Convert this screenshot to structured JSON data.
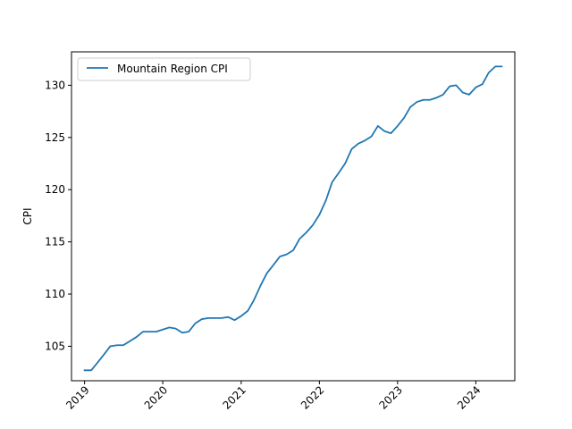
{
  "chart_data": {
    "type": "line",
    "title": "",
    "xlabel": "",
    "ylabel": "CPI",
    "xlim": [
      "2018-11-01",
      "2024-07-01"
    ],
    "ylim": [
      101.7,
      133.2
    ],
    "x_ticks": [
      "2019",
      "2020",
      "2021",
      "2022",
      "2023",
      "2024"
    ],
    "y_ticks": [
      105,
      110,
      115,
      120,
      125,
      130
    ],
    "grid": false,
    "legend": "top-left",
    "series": [
      {
        "name": "Mountain Region CPI",
        "color": "#1f77b4",
        "x": [
          "2019-01",
          "2019-02",
          "2019-03",
          "2019-04",
          "2019-05",
          "2019-06",
          "2019-07",
          "2019-08",
          "2019-09",
          "2019-10",
          "2019-11",
          "2019-12",
          "2020-01",
          "2020-02",
          "2020-03",
          "2020-04",
          "2020-05",
          "2020-06",
          "2020-07",
          "2020-08",
          "2020-09",
          "2020-10",
          "2020-11",
          "2020-12",
          "2021-01",
          "2021-02",
          "2021-03",
          "2021-04",
          "2021-05",
          "2021-06",
          "2021-07",
          "2021-08",
          "2021-09",
          "2021-10",
          "2021-11",
          "2021-12",
          "2022-01",
          "2022-02",
          "2022-03",
          "2022-04",
          "2022-05",
          "2022-06",
          "2022-07",
          "2022-08",
          "2022-09",
          "2022-10",
          "2022-11",
          "2022-12",
          "2023-01",
          "2023-02",
          "2023-03",
          "2023-04",
          "2023-05",
          "2023-06",
          "2023-07",
          "2023-08",
          "2023-09",
          "2023-10",
          "2023-11",
          "2023-12",
          "2024-01",
          "2024-02",
          "2024-03",
          "2024-04",
          "2024-05"
        ],
        "values": [
          102.7,
          102.7,
          103.4,
          104.2,
          105.0,
          105.1,
          105.1,
          105.5,
          105.9,
          106.4,
          106.4,
          106.4,
          106.6,
          106.8,
          106.7,
          106.3,
          106.4,
          107.2,
          107.6,
          107.7,
          107.7,
          107.7,
          107.8,
          107.5,
          107.9,
          108.4,
          109.4,
          110.8,
          112.0,
          112.8,
          113.6,
          113.8,
          114.2,
          115.3,
          115.9,
          116.6,
          117.6,
          119.0,
          120.7,
          121.6,
          122.5,
          123.9,
          124.4,
          124.7,
          125.1,
          126.1,
          125.6,
          125.4,
          126.1,
          126.9,
          127.9,
          128.4,
          128.6,
          128.6,
          128.8,
          129.1,
          129.9,
          130.0,
          129.3,
          129.1,
          129.8,
          130.1,
          131.2,
          131.8,
          131.8
        ]
      }
    ]
  }
}
